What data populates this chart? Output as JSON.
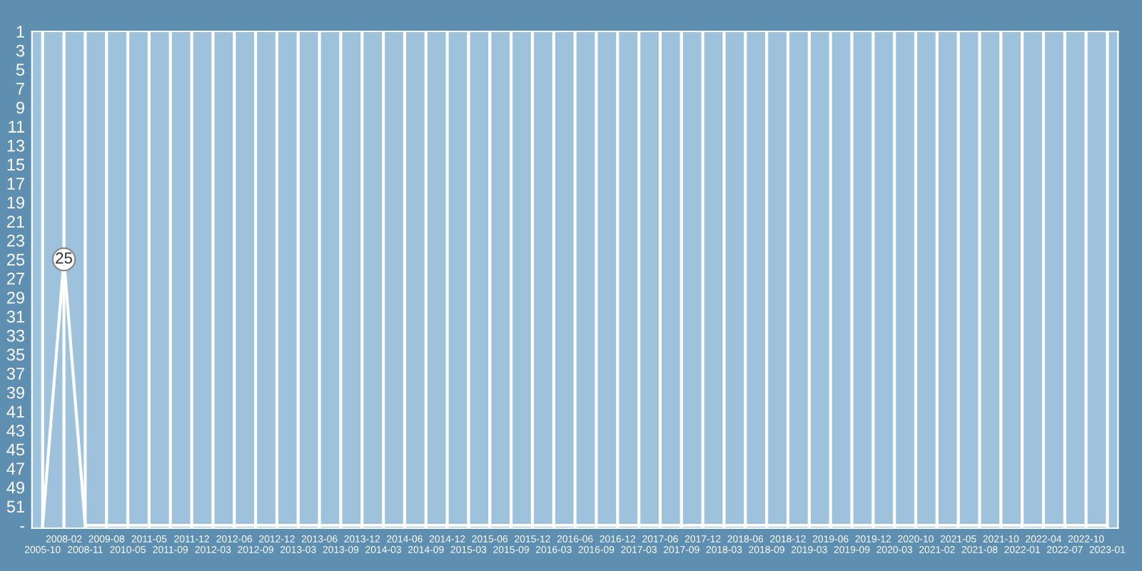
{
  "chart_data": {
    "type": "line",
    "categories": [
      "2005-10",
      "2008-02",
      "2008-11",
      "2009-08",
      "2010-05",
      "2011-05",
      "2011-09",
      "2011-12",
      "2012-03",
      "2012-06",
      "2012-09",
      "2012-12",
      "2013-03",
      "2013-06",
      "2013-09",
      "2013-12",
      "2014-03",
      "2014-06",
      "2014-09",
      "2014-12",
      "2015-03",
      "2015-06",
      "2015-09",
      "2015-12",
      "2016-03",
      "2016-06",
      "2016-09",
      "2016-12",
      "2017-03",
      "2017-06",
      "2017-09",
      "2017-12",
      "2018-03",
      "2018-06",
      "2018-09",
      "2018-12",
      "2019-03",
      "2019-06",
      "2019-09",
      "2019-12",
      "2020-03",
      "2020-10",
      "2021-02",
      "2021-05",
      "2021-08",
      "2021-10",
      "2022-01",
      "2022-04",
      "2022-07",
      "2022-10",
      "2023-01"
    ],
    "series": [
      {
        "color": "#ffffff",
        "values": [
          53,
          25,
          53,
          53,
          53,
          53,
          53,
          53,
          53,
          53,
          53,
          53,
          53,
          53,
          53,
          53,
          53,
          53,
          53,
          53,
          53,
          53,
          53,
          53,
          53,
          53,
          53,
          53,
          53,
          53,
          53,
          53,
          53,
          53,
          53,
          53,
          53,
          53,
          53,
          53,
          53,
          53,
          53,
          53,
          53,
          53,
          53,
          53,
          53,
          53,
          53
        ],
        "value_labels": [
          null,
          "25",
          null,
          null,
          null,
          null,
          null,
          null,
          null,
          null,
          null,
          null,
          null,
          null,
          null,
          null,
          null,
          null,
          null,
          null,
          null,
          null,
          null,
          null,
          null,
          null,
          null,
          null,
          null,
          null,
          null,
          null,
          null,
          null,
          null,
          null,
          null,
          null,
          null,
          null,
          null,
          null,
          null,
          null,
          null,
          null,
          null,
          null,
          null,
          null,
          null
        ]
      }
    ],
    "ylim": [
      53.3,
      1
    ],
    "yticks": [
      1,
      3,
      5,
      7,
      9,
      11,
      13,
      15,
      17,
      19,
      21,
      23,
      25,
      27,
      29,
      31,
      33,
      35,
      37,
      39,
      41,
      43,
      45,
      47,
      49,
      51,
      {
        "value": 53,
        "label": "-"
      }
    ],
    "grid": "x",
    "marker": "none",
    "line_style": "solid",
    "legend": false
  }
}
